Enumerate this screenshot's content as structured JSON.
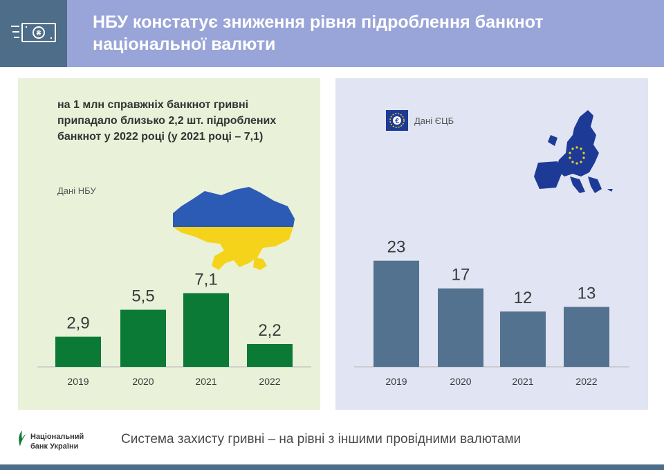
{
  "header": {
    "title": "НБУ констатує зниження рівня підроблення банкнот національної валюти"
  },
  "ukraine_panel": {
    "description": "на 1 млн справжніх банкнот гривні припадало близько 2,2 шт. підроблених банкнот у 2022 році (у 2021 році – 7,1)",
    "source": "Дані НБУ"
  },
  "ecb_panel": {
    "source": "Дані ЄЦБ"
  },
  "footer": {
    "logo_line1": "Національний",
    "logo_line2": "банк України",
    "tagline": "Система захисту гривні – на рівні з іншими провідними валютами"
  },
  "colors": {
    "header_bg": "#99a5d8",
    "ukraine_bar": "#0a7a36",
    "ecb_bar": "#53728f",
    "ukraine_blue": "#2b5bb5",
    "ukraine_yellow": "#f5d31a",
    "eu_blue": "#1d3b96"
  },
  "chart_data": [
    {
      "type": "bar",
      "categories": [
        "2019",
        "2020",
        "2021",
        "2022"
      ],
      "values": [
        2.9,
        5.5,
        7.1,
        2.2
      ],
      "labels": [
        "2,9",
        "5,5",
        "7,1",
        "2,2"
      ],
      "ylim": [
        0,
        16
      ]
    },
    {
      "type": "bar",
      "categories": [
        "2019",
        "2020",
        "2021",
        "2022"
      ],
      "values": [
        23,
        17,
        12,
        13
      ],
      "labels": [
        "23",
        "17",
        "12",
        "13"
      ],
      "ylim": [
        0,
        36
      ]
    }
  ]
}
